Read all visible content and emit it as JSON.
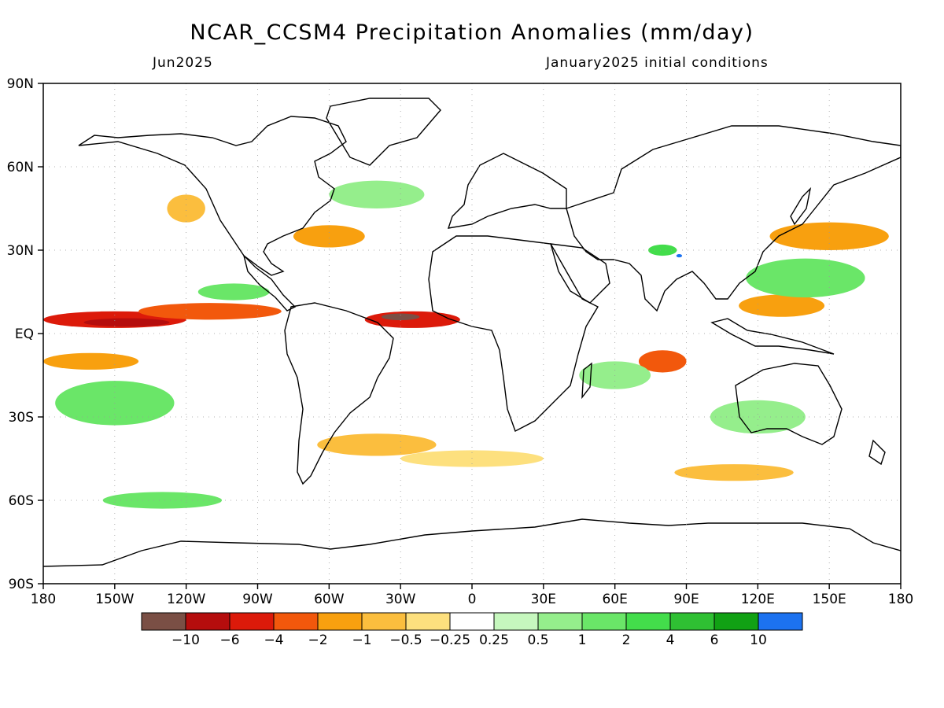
{
  "header": {
    "title": "NCAR_CCSM4 Precipitation Anomalies (mm/day)",
    "valid_month": "Jun2025",
    "init": "January2025 initial conditions"
  },
  "axes": {
    "lat_labels": [
      "90N",
      "60N",
      "30N",
      "EQ",
      "30S",
      "60S",
      "90S"
    ],
    "lat_values": [
      90,
      60,
      30,
      0,
      -30,
      -60,
      -90
    ],
    "lon_labels": [
      "180",
      "150W",
      "120W",
      "90W",
      "60W",
      "30W",
      "0",
      "30E",
      "60E",
      "90E",
      "120E",
      "150E",
      "180"
    ],
    "lon_values": [
      -180,
      -150,
      -120,
      -90,
      -60,
      -30,
      0,
      30,
      60,
      90,
      120,
      150,
      180
    ]
  },
  "colorbar": {
    "colors": [
      "#7a4f45",
      "#b50d0d",
      "#dc1a0a",
      "#f2580c",
      "#f8a00f",
      "#fbbe3e",
      "#fde07e",
      "#ffffff",
      "#c6f7be",
      "#95ee8c",
      "#6ae668",
      "#43dd4b",
      "#2fc033",
      "#11a114",
      "#1c72f0"
    ],
    "labels": [
      "−10",
      "−6",
      "−4",
      "−2",
      "−1",
      "−0.5",
      "−0.25",
      "0.25",
      "0.5",
      "1",
      "2",
      "4",
      "6",
      "10"
    ]
  },
  "map_data": {
    "anomaly_patches": [
      {
        "lon": -150,
        "lat": 5,
        "rx": 30,
        "ry": 3,
        "level": "-4"
      },
      {
        "lon": -145,
        "lat": 4,
        "rx": 18,
        "ry": 1.5,
        "level": "-6"
      },
      {
        "lon": -110,
        "lat": 8,
        "rx": 30,
        "ry": 3,
        "level": "-2"
      },
      {
        "lon": -25,
        "lat": 5,
        "rx": 20,
        "ry": 3,
        "level": "-4"
      },
      {
        "lon": -30,
        "lat": 6,
        "rx": 8,
        "ry": 1.2,
        "level": "-10"
      },
      {
        "lon": -160,
        "lat": -10,
        "rx": 20,
        "ry": 3,
        "level": "-1"
      },
      {
        "lon": -120,
        "lat": 45,
        "rx": 8,
        "ry": 5,
        "level": "-0.5"
      },
      {
        "lon": -60,
        "lat": 35,
        "rx": 15,
        "ry": 4,
        "level": "-1"
      },
      {
        "lon": -40,
        "lat": -40,
        "rx": 25,
        "ry": 4,
        "level": "-0.5"
      },
      {
        "lon": 0,
        "lat": -45,
        "rx": 30,
        "ry": 3,
        "level": "-0.25"
      },
      {
        "lon": 130,
        "lat": 10,
        "rx": 18,
        "ry": 4,
        "level": "-1"
      },
      {
        "lon": 150,
        "lat": 35,
        "rx": 25,
        "ry": 5,
        "level": "-1"
      },
      {
        "lon": 80,
        "lat": -10,
        "rx": 10,
        "ry": 4,
        "level": "-2"
      },
      {
        "lon": 110,
        "lat": -50,
        "rx": 25,
        "ry": 3,
        "level": "-0.5"
      },
      {
        "lon": -150,
        "lat": -25,
        "rx": 25,
        "ry": 8,
        "level": "1"
      },
      {
        "lon": -40,
        "lat": 50,
        "rx": 20,
        "ry": 5,
        "level": "0.5"
      },
      {
        "lon": -100,
        "lat": 15,
        "rx": 15,
        "ry": 3,
        "level": "1"
      },
      {
        "lon": 140,
        "lat": 20,
        "rx": 25,
        "ry": 7,
        "level": "1"
      },
      {
        "lon": 60,
        "lat": -15,
        "rx": 15,
        "ry": 5,
        "level": "0.5"
      },
      {
        "lon": -130,
        "lat": -60,
        "rx": 25,
        "ry": 3,
        "level": "1"
      },
      {
        "lon": 80,
        "lat": 30,
        "rx": 6,
        "ry": 2,
        "level": "2"
      },
      {
        "lon": 87,
        "lat": 28,
        "rx": 1.2,
        "ry": 0.6,
        "level": "10"
      },
      {
        "lon": 120,
        "lat": -30,
        "rx": 20,
        "ry": 6,
        "level": "0.5"
      }
    ]
  }
}
